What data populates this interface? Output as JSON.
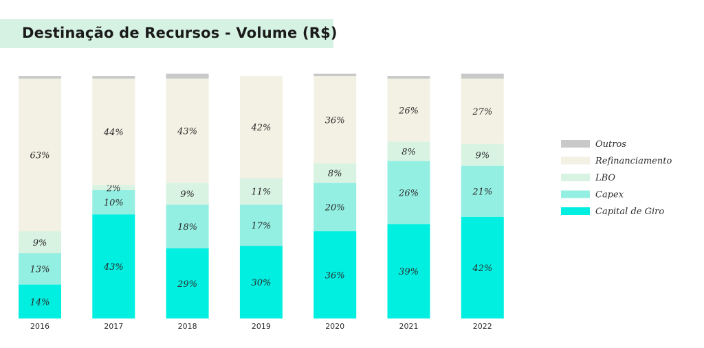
{
  "title": "Destinação de Recursos - Volume (R$)",
  "chart_data": {
    "type": "bar",
    "stacked": true,
    "normalized": true,
    "title": "Destinação de Recursos - Volume (R$)",
    "categories": [
      "2016",
      "2017",
      "2018",
      "2019",
      "2020",
      "2021",
      "2022"
    ],
    "series": [
      {
        "name": "Capital de Giro",
        "color": "#00efe0",
        "values": [
          14,
          43,
          29,
          30,
          36,
          39,
          42
        ],
        "labels": [
          "14%",
          "43%",
          "29%",
          "30%",
          "36%",
          "39%",
          "42%"
        ]
      },
      {
        "name": "Capex",
        "color": "#93efe2",
        "values": [
          13,
          10,
          18,
          17,
          20,
          26,
          21
        ],
        "labels": [
          "13%",
          "10%",
          "18%",
          "17%",
          "20%",
          "26%",
          "21%"
        ]
      },
      {
        "name": "LBO",
        "color": "#d9f3e3",
        "values": [
          9,
          2,
          9,
          11,
          8,
          8,
          9
        ],
        "labels": [
          "9%",
          "2%",
          "9%",
          "11%",
          "8%",
          "8%",
          "9%"
        ]
      },
      {
        "name": "Refinanciamento",
        "color": "#f3f1e3",
        "values": [
          63,
          44,
          43,
          42,
          36,
          26,
          27
        ],
        "labels": [
          "63%",
          "44%",
          "43%",
          "42%",
          "36%",
          "26%",
          "27%"
        ]
      },
      {
        "name": "Outros",
        "color": "#c9c9c9",
        "values": [
          1,
          1,
          2,
          0,
          1,
          1,
          2
        ],
        "labels": [
          "",
          "",
          "",
          "",
          "",
          "",
          ""
        ]
      }
    ],
    "legend_order": [
      "Outros",
      "Refinanciamento",
      "LBO",
      "Capex",
      "Capital de Giro"
    ],
    "legend_position": "right",
    "grid": false,
    "ylim": [
      0,
      100
    ]
  }
}
